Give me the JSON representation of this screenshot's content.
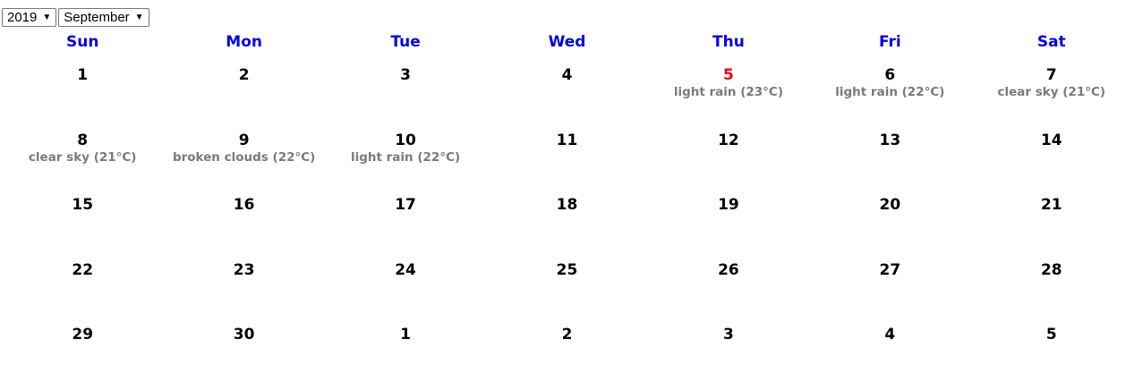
{
  "controls": {
    "year": "2019",
    "month": "September"
  },
  "weekdays": [
    "Sun",
    "Mon",
    "Tue",
    "Wed",
    "Thu",
    "Fri",
    "Sat"
  ],
  "weeks": [
    [
      {
        "day": "1",
        "weather": ""
      },
      {
        "day": "2",
        "weather": ""
      },
      {
        "day": "3",
        "weather": ""
      },
      {
        "day": "4",
        "weather": ""
      },
      {
        "day": "5",
        "weather": "light rain (23°C)",
        "today": true
      },
      {
        "day": "6",
        "weather": "light rain (22°C)"
      },
      {
        "day": "7",
        "weather": "clear sky (21°C)"
      }
    ],
    [
      {
        "day": "8",
        "weather": "clear sky (21°C)"
      },
      {
        "day": "9",
        "weather": "broken clouds (22°C)"
      },
      {
        "day": "10",
        "weather": "light rain (22°C)"
      },
      {
        "day": "11",
        "weather": ""
      },
      {
        "day": "12",
        "weather": ""
      },
      {
        "day": "13",
        "weather": ""
      },
      {
        "day": "14",
        "weather": ""
      }
    ],
    [
      {
        "day": "15",
        "weather": ""
      },
      {
        "day": "16",
        "weather": ""
      },
      {
        "day": "17",
        "weather": ""
      },
      {
        "day": "18",
        "weather": ""
      },
      {
        "day": "19",
        "weather": ""
      },
      {
        "day": "20",
        "weather": ""
      },
      {
        "day": "21",
        "weather": ""
      }
    ],
    [
      {
        "day": "22",
        "weather": ""
      },
      {
        "day": "23",
        "weather": ""
      },
      {
        "day": "24",
        "weather": ""
      },
      {
        "day": "25",
        "weather": ""
      },
      {
        "day": "26",
        "weather": ""
      },
      {
        "day": "27",
        "weather": ""
      },
      {
        "day": "28",
        "weather": ""
      }
    ],
    [
      {
        "day": "29",
        "weather": ""
      },
      {
        "day": "30",
        "weather": ""
      },
      {
        "day": "1",
        "weather": ""
      },
      {
        "day": "2",
        "weather": ""
      },
      {
        "day": "3",
        "weather": ""
      },
      {
        "day": "4",
        "weather": ""
      },
      {
        "day": "5",
        "weather": ""
      }
    ]
  ],
  "colors": {
    "weekday_header": "#0000ee",
    "today": "#ee0000",
    "weather_text": "#7a7a7a"
  }
}
